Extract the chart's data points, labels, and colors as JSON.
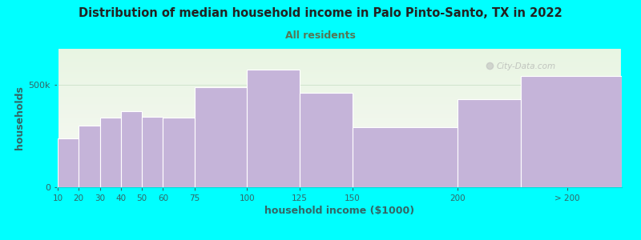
{
  "title": "Distribution of median household income in Palo Pinto-Santo, TX in 2022",
  "subtitle": "All residents",
  "xlabel": "household income ($1000)",
  "ylabel": "households",
  "background_color": "#00FFFF",
  "plot_bg_top": "#e8f5e2",
  "plot_bg_bottom": "#f8f8f5",
  "bar_color": "#c5b4d9",
  "bar_edge_color": "#ffffff",
  "title_color": "#222222",
  "subtitle_color": "#557755",
  "axis_label_color": "#336666",
  "tick_label_color": "#336666",
  "values": [
    240,
    300,
    340,
    370,
    345,
    340,
    490,
    575,
    460,
    295,
    430,
    545
  ],
  "ylim": [
    0,
    680
  ],
  "watermark": "City-Data.com"
}
